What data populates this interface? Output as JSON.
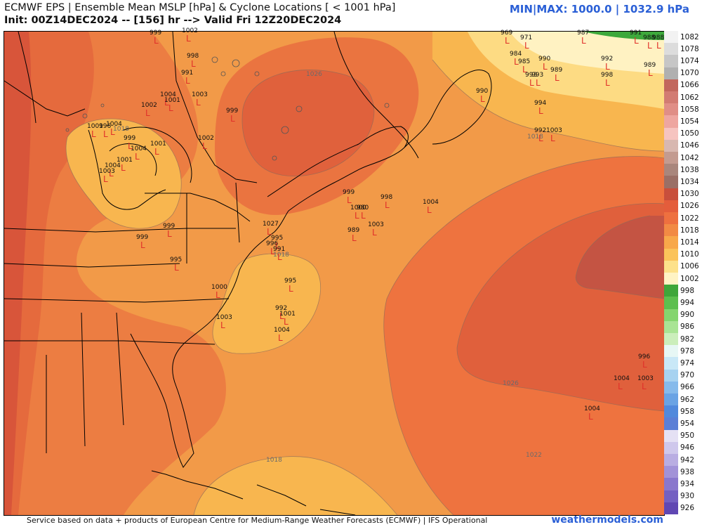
{
  "header": {
    "title": "ECMWF EPS | Ensemble Mean MSLP [hPa] & Cyclone Locations [ < 1001 hPa]",
    "subtitle": "Init: 00Z14DEC2024 -- [156] hr --> Valid Fri 12Z20DEC2024",
    "minmax": "MIN|MAX: 1000.0 | 1032.9 hPa"
  },
  "footer": {
    "credit": "Service based on data + products of European Centre for Medium-Range Weather Forecasts (ECMWF) | IFS Operational",
    "brand": "weathermodels.com"
  },
  "colorbar": {
    "levels": [
      "1082",
      "1078",
      "1074",
      "1070",
      "1066",
      "1062",
      "1058",
      "1054",
      "1050",
      "1046",
      "1042",
      "1038",
      "1034",
      "1030",
      "1026",
      "1022",
      "1018",
      "1014",
      "1010",
      "1006",
      "1002",
      "998",
      "994",
      "990",
      "986",
      "982",
      "978",
      "974",
      "970",
      "966",
      "962",
      "958",
      "954",
      "950",
      "946",
      "942",
      "938",
      "934",
      "930",
      "926"
    ],
    "colors": [
      "#f2f2f2",
      "#dcdcdc",
      "#c6c6c6",
      "#b0b0b0",
      "#c2675d",
      "#d27b72",
      "#e08e86",
      "#eea6a0",
      "#f6c4c0",
      "#d8b8b0",
      "#c39b90",
      "#a9867c",
      "#9a6f66",
      "#c84f3c",
      "#e45d3b",
      "#ee703f",
      "#f28a44",
      "#f8a84a",
      "#fbc35a",
      "#fde18a",
      "#fff3c4",
      "#3ea63a",
      "#5cbf4e",
      "#84d56e",
      "#a9e494",
      "#cbeebb",
      "#e7f7f5",
      "#c9e8f7",
      "#a7d2f0",
      "#86baeb",
      "#6aa3e4",
      "#5189dc",
      "#5b7fd6",
      "#e5e1f4",
      "#cfc8ec",
      "#b9ade2",
      "#a292d8",
      "#8a77cd",
      "#7460c2",
      "#6047b3"
    ]
  },
  "isobars": [
    "1026",
    "1018",
    "1018",
    "1018",
    "1018",
    "1026",
    "1022"
  ],
  "lows": [
    {
      "v": "999",
      "x": 207,
      "y": -5
    },
    {
      "v": "1002",
      "x": 253,
      "y": -8
    },
    {
      "v": "998",
      "x": 260,
      "y": 28
    },
    {
      "v": "991",
      "x": 252,
      "y": 52
    },
    {
      "v": "1004",
      "x": 222,
      "y": 83
    },
    {
      "v": "1001",
      "x": 228,
      "y": 91
    },
    {
      "v": "1003",
      "x": 267,
      "y": 83
    },
    {
      "v": "1002",
      "x": 195,
      "y": 98
    },
    {
      "v": "999",
      "x": 316,
      "y": 106
    },
    {
      "v": "1004",
      "x": 145,
      "y": 125
    },
    {
      "v": "1001",
      "x": 118,
      "y": 128
    },
    {
      "v": "996",
      "x": 135,
      "y": 128
    },
    {
      "v": "999",
      "x": 170,
      "y": 145
    },
    {
      "v": "1002",
      "x": 276,
      "y": 145
    },
    {
      "v": "1001",
      "x": 208,
      "y": 153
    },
    {
      "v": "1004",
      "x": 180,
      "y": 160
    },
    {
      "v": "1001",
      "x": 160,
      "y": 176
    },
    {
      "v": "1004",
      "x": 143,
      "y": 184
    },
    {
      "v": "1003",
      "x": 135,
      "y": 192
    },
    {
      "v": "999",
      "x": 188,
      "y": 286
    },
    {
      "v": "999",
      "x": 226,
      "y": 270
    },
    {
      "v": "995",
      "x": 236,
      "y": 318
    },
    {
      "v": "1027",
      "x": 368,
      "y": 267
    },
    {
      "v": "995",
      "x": 380,
      "y": 287
    },
    {
      "v": "996",
      "x": 373,
      "y": 295
    },
    {
      "v": "991",
      "x": 383,
      "y": 303
    },
    {
      "v": "1000",
      "x": 295,
      "y": 357
    },
    {
      "v": "1003",
      "x": 302,
      "y": 400
    },
    {
      "v": "995",
      "x": 399,
      "y": 348
    },
    {
      "v": "992",
      "x": 386,
      "y": 387
    },
    {
      "v": "1001",
      "x": 392,
      "y": 395
    },
    {
      "v": "1004",
      "x": 384,
      "y": 418
    },
    {
      "v": "999",
      "x": 482,
      "y": 222
    },
    {
      "v": "1000",
      "x": 493,
      "y": 244
    },
    {
      "v": "980",
      "x": 502,
      "y": 244
    },
    {
      "v": "998",
      "x": 536,
      "y": 229
    },
    {
      "v": "1004",
      "x": 596,
      "y": 236
    },
    {
      "v": "989",
      "x": 489,
      "y": 276
    },
    {
      "v": "1003",
      "x": 518,
      "y": 268
    },
    {
      "v": "969",
      "x": 707,
      "y": -5
    },
    {
      "v": "971",
      "x": 735,
      "y": 2
    },
    {
      "v": "987",
      "x": 816,
      "y": -5
    },
    {
      "v": "991",
      "x": 891,
      "y": -5
    },
    {
      "v": "988",
      "x": 910,
      "y": 2
    },
    {
      "v": "988",
      "x": 923,
      "y": 2
    },
    {
      "v": "984",
      "x": 720,
      "y": 25
    },
    {
      "v": "985",
      "x": 732,
      "y": 36
    },
    {
      "v": "990",
      "x": 761,
      "y": 32
    },
    {
      "v": "992",
      "x": 850,
      "y": 32
    },
    {
      "v": "989",
      "x": 911,
      "y": 41
    },
    {
      "v": "993",
      "x": 742,
      "y": 55
    },
    {
      "v": "993",
      "x": 751,
      "y": 55
    },
    {
      "v": "989",
      "x": 778,
      "y": 48
    },
    {
      "v": "998",
      "x": 850,
      "y": 55
    },
    {
      "v": "990",
      "x": 672,
      "y": 78
    },
    {
      "v": "994",
      "x": 755,
      "y": 95
    },
    {
      "v": "992",
      "x": 755,
      "y": 134
    },
    {
      "v": "1003",
      "x": 772,
      "y": 134
    },
    {
      "v": "996",
      "x": 903,
      "y": 456
    },
    {
      "v": "1004",
      "x": 868,
      "y": 487
    },
    {
      "v": "1003",
      "x": 902,
      "y": 487
    },
    {
      "v": "1004",
      "x": 826,
      "y": 530
    }
  ]
}
